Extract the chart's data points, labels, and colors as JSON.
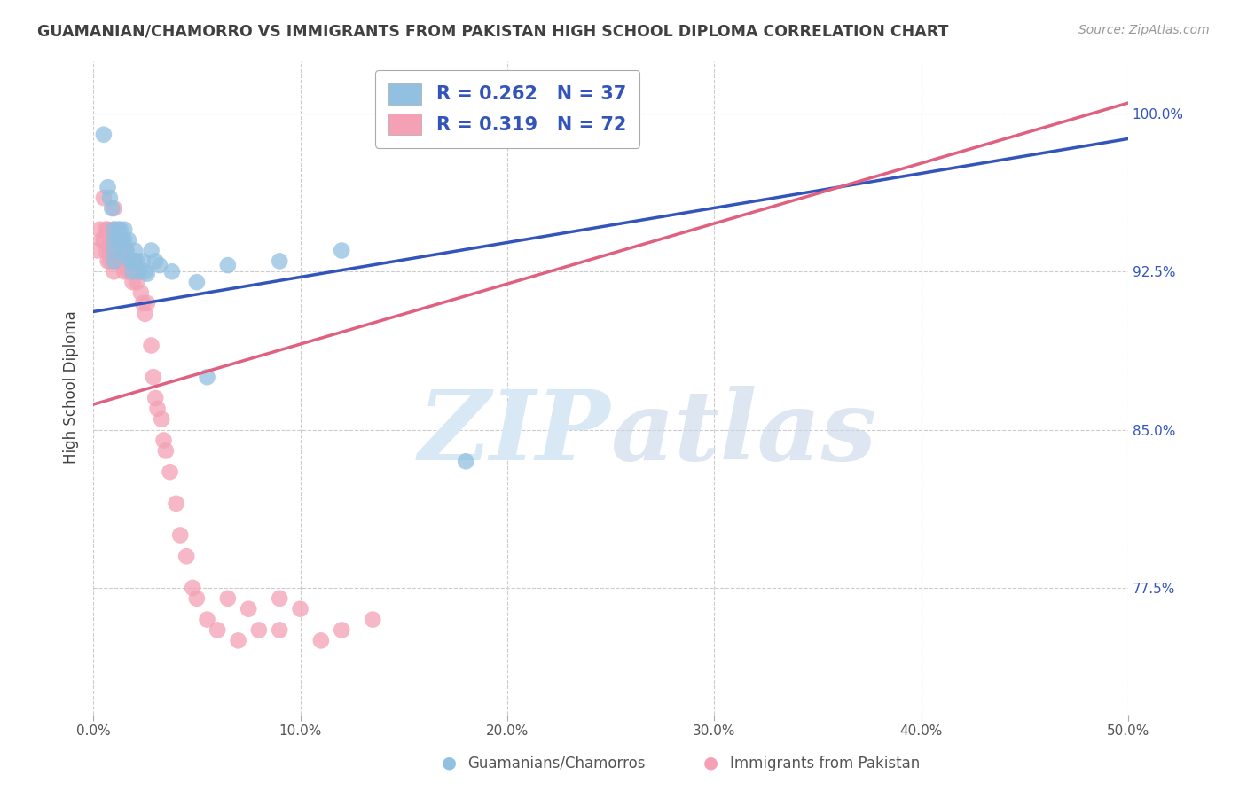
{
  "title": "GUAMANIAN/CHAMORRO VS IMMIGRANTS FROM PAKISTAN HIGH SCHOOL DIPLOMA CORRELATION CHART",
  "source": "Source: ZipAtlas.com",
  "ylabel": "High School Diploma",
  "ytick_labels": [
    "100.0%",
    "92.5%",
    "85.0%",
    "77.5%"
  ],
  "ytick_values": [
    1.0,
    0.925,
    0.85,
    0.775
  ],
  "xtick_values": [
    0.0,
    0.1,
    0.2,
    0.3,
    0.4,
    0.5
  ],
  "xtick_labels": [
    "0.0%",
    "10.0%",
    "20.0%",
    "30.0%",
    "40.0%",
    "50.0%"
  ],
  "xmin": 0.0,
  "xmax": 0.5,
  "ymin": 0.715,
  "ymax": 1.025,
  "watermark_zip": "ZIP",
  "watermark_atlas": "atlas",
  "blue_R": 0.262,
  "blue_N": 37,
  "pink_R": 0.319,
  "pink_N": 72,
  "blue_label": "Guamanians/Chamorros",
  "pink_label": "Immigrants from Pakistan",
  "blue_color": "#92c0e0",
  "pink_color": "#f4a0b5",
  "blue_line_color": "#3355bb",
  "pink_line_color": "#e06080",
  "text_color": "#3355bb",
  "title_color": "#404040",
  "source_color": "#999999",
  "blue_line_x0": 0.0,
  "blue_line_y0": 0.906,
  "blue_line_x1": 0.5,
  "blue_line_y1": 0.988,
  "pink_line_x0": 0.0,
  "pink_line_y0": 0.862,
  "pink_line_x1": 0.5,
  "pink_line_y1": 1.005,
  "blue_x": [
    0.005,
    0.007,
    0.008,
    0.009,
    0.01,
    0.01,
    0.01,
    0.01,
    0.012,
    0.012,
    0.013,
    0.014,
    0.014,
    0.015,
    0.015,
    0.016,
    0.017,
    0.018,
    0.018,
    0.019,
    0.02,
    0.02,
    0.021,
    0.022,
    0.024,
    0.025,
    0.026,
    0.028,
    0.03,
    0.032,
    0.038,
    0.05,
    0.055,
    0.065,
    0.09,
    0.12,
    0.18
  ],
  "blue_y": [
    0.99,
    0.965,
    0.96,
    0.955,
    0.945,
    0.94,
    0.935,
    0.93,
    0.945,
    0.94,
    0.945,
    0.94,
    0.935,
    0.945,
    0.94,
    0.935,
    0.94,
    0.93,
    0.93,
    0.925,
    0.935,
    0.93,
    0.93,
    0.925,
    0.93,
    0.925,
    0.924,
    0.935,
    0.93,
    0.928,
    0.925,
    0.92,
    0.875,
    0.928,
    0.93,
    0.935,
    0.835
  ],
  "pink_x": [
    0.002,
    0.003,
    0.004,
    0.005,
    0.005,
    0.006,
    0.006,
    0.007,
    0.007,
    0.008,
    0.008,
    0.008,
    0.009,
    0.009,
    0.01,
    0.01,
    0.01,
    0.01,
    0.01,
    0.01,
    0.011,
    0.011,
    0.012,
    0.012,
    0.013,
    0.013,
    0.014,
    0.014,
    0.015,
    0.015,
    0.015,
    0.016,
    0.016,
    0.017,
    0.018,
    0.018,
    0.019,
    0.019,
    0.02,
    0.02,
    0.021,
    0.022,
    0.023,
    0.024,
    0.025,
    0.026,
    0.028,
    0.029,
    0.03,
    0.031,
    0.033,
    0.034,
    0.035,
    0.037,
    0.04,
    0.042,
    0.045,
    0.048,
    0.05,
    0.055,
    0.06,
    0.065,
    0.07,
    0.075,
    0.08,
    0.09,
    0.09,
    0.1,
    0.11,
    0.12,
    0.135,
    0.22
  ],
  "pink_y": [
    0.935,
    0.945,
    0.94,
    0.96,
    0.94,
    0.945,
    0.935,
    0.945,
    0.93,
    0.94,
    0.935,
    0.93,
    0.94,
    0.935,
    0.955,
    0.945,
    0.94,
    0.935,
    0.93,
    0.925,
    0.94,
    0.935,
    0.935,
    0.93,
    0.935,
    0.93,
    0.94,
    0.93,
    0.935,
    0.93,
    0.925,
    0.935,
    0.93,
    0.925,
    0.93,
    0.925,
    0.93,
    0.92,
    0.93,
    0.925,
    0.92,
    0.925,
    0.915,
    0.91,
    0.905,
    0.91,
    0.89,
    0.875,
    0.865,
    0.86,
    0.855,
    0.845,
    0.84,
    0.83,
    0.815,
    0.8,
    0.79,
    0.775,
    0.77,
    0.76,
    0.755,
    0.77,
    0.75,
    0.765,
    0.755,
    0.77,
    0.755,
    0.765,
    0.75,
    0.755,
    0.76,
    0.995
  ]
}
